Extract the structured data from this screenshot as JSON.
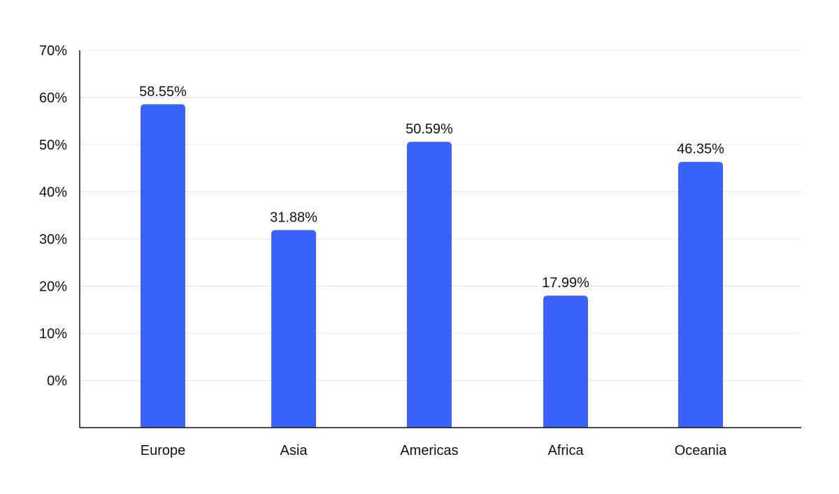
{
  "chart_data": {
    "type": "bar",
    "title": "",
    "xlabel": "",
    "ylabel": "",
    "categories": [
      "Europe",
      "Asia",
      "Americas",
      "Africa",
      "Oceania"
    ],
    "values": [
      58.55,
      31.88,
      50.59,
      17.99,
      46.35
    ],
    "value_labels": [
      "58.55%",
      "31.88%",
      "50.59%",
      "17.99%",
      "46.35%"
    ],
    "y_ticks": [
      0,
      10,
      20,
      30,
      40,
      50,
      60,
      70
    ],
    "y_tick_labels": [
      "0%",
      "10%",
      "20%",
      "30%",
      "40%",
      "50%",
      "60%",
      "70%"
    ],
    "ylim": [
      -10,
      70
    ],
    "grid": true,
    "legend": "none",
    "bar_color": "#3b63fb",
    "grid_color": "#e3e3e3",
    "axis_color": "#111111"
  }
}
